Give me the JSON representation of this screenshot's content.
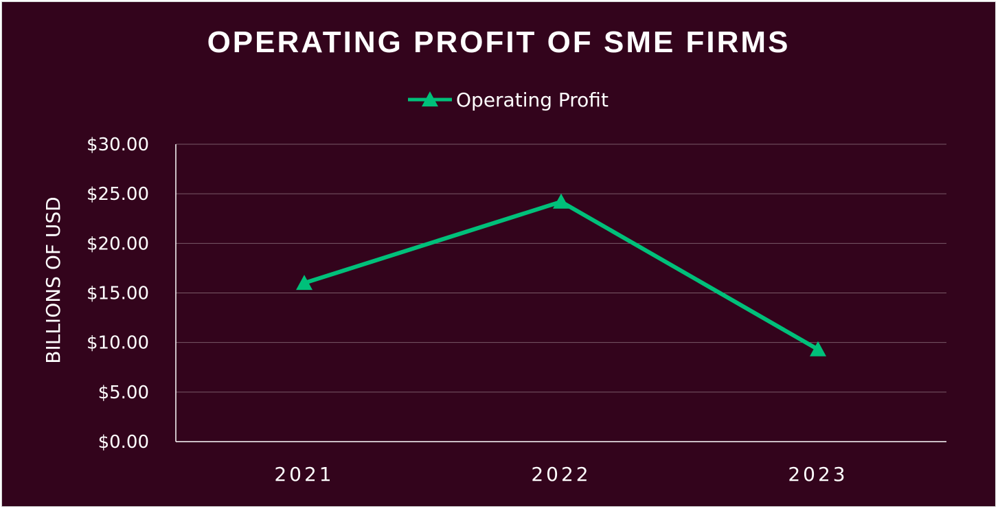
{
  "chart_data": {
    "type": "line",
    "title": "OPERATING PROFIT OF SME FIRMS",
    "ylabel": "BILLIONS OF USD",
    "xlabel": "",
    "categories": [
      "2021",
      "2022",
      "2023"
    ],
    "series": [
      {
        "name": "Operating Profit",
        "values": [
          16.0,
          24.2,
          9.3
        ],
        "color": "#00c07a",
        "marker": "triangle"
      }
    ],
    "ylim": [
      0,
      30
    ],
    "yticks": [
      "$0.00",
      "$5.00",
      "$10.00",
      "$15.00",
      "$20.00",
      "$25.00",
      "$30.00"
    ],
    "grid": true,
    "legend_position": "top",
    "background_color": "#33041c"
  }
}
